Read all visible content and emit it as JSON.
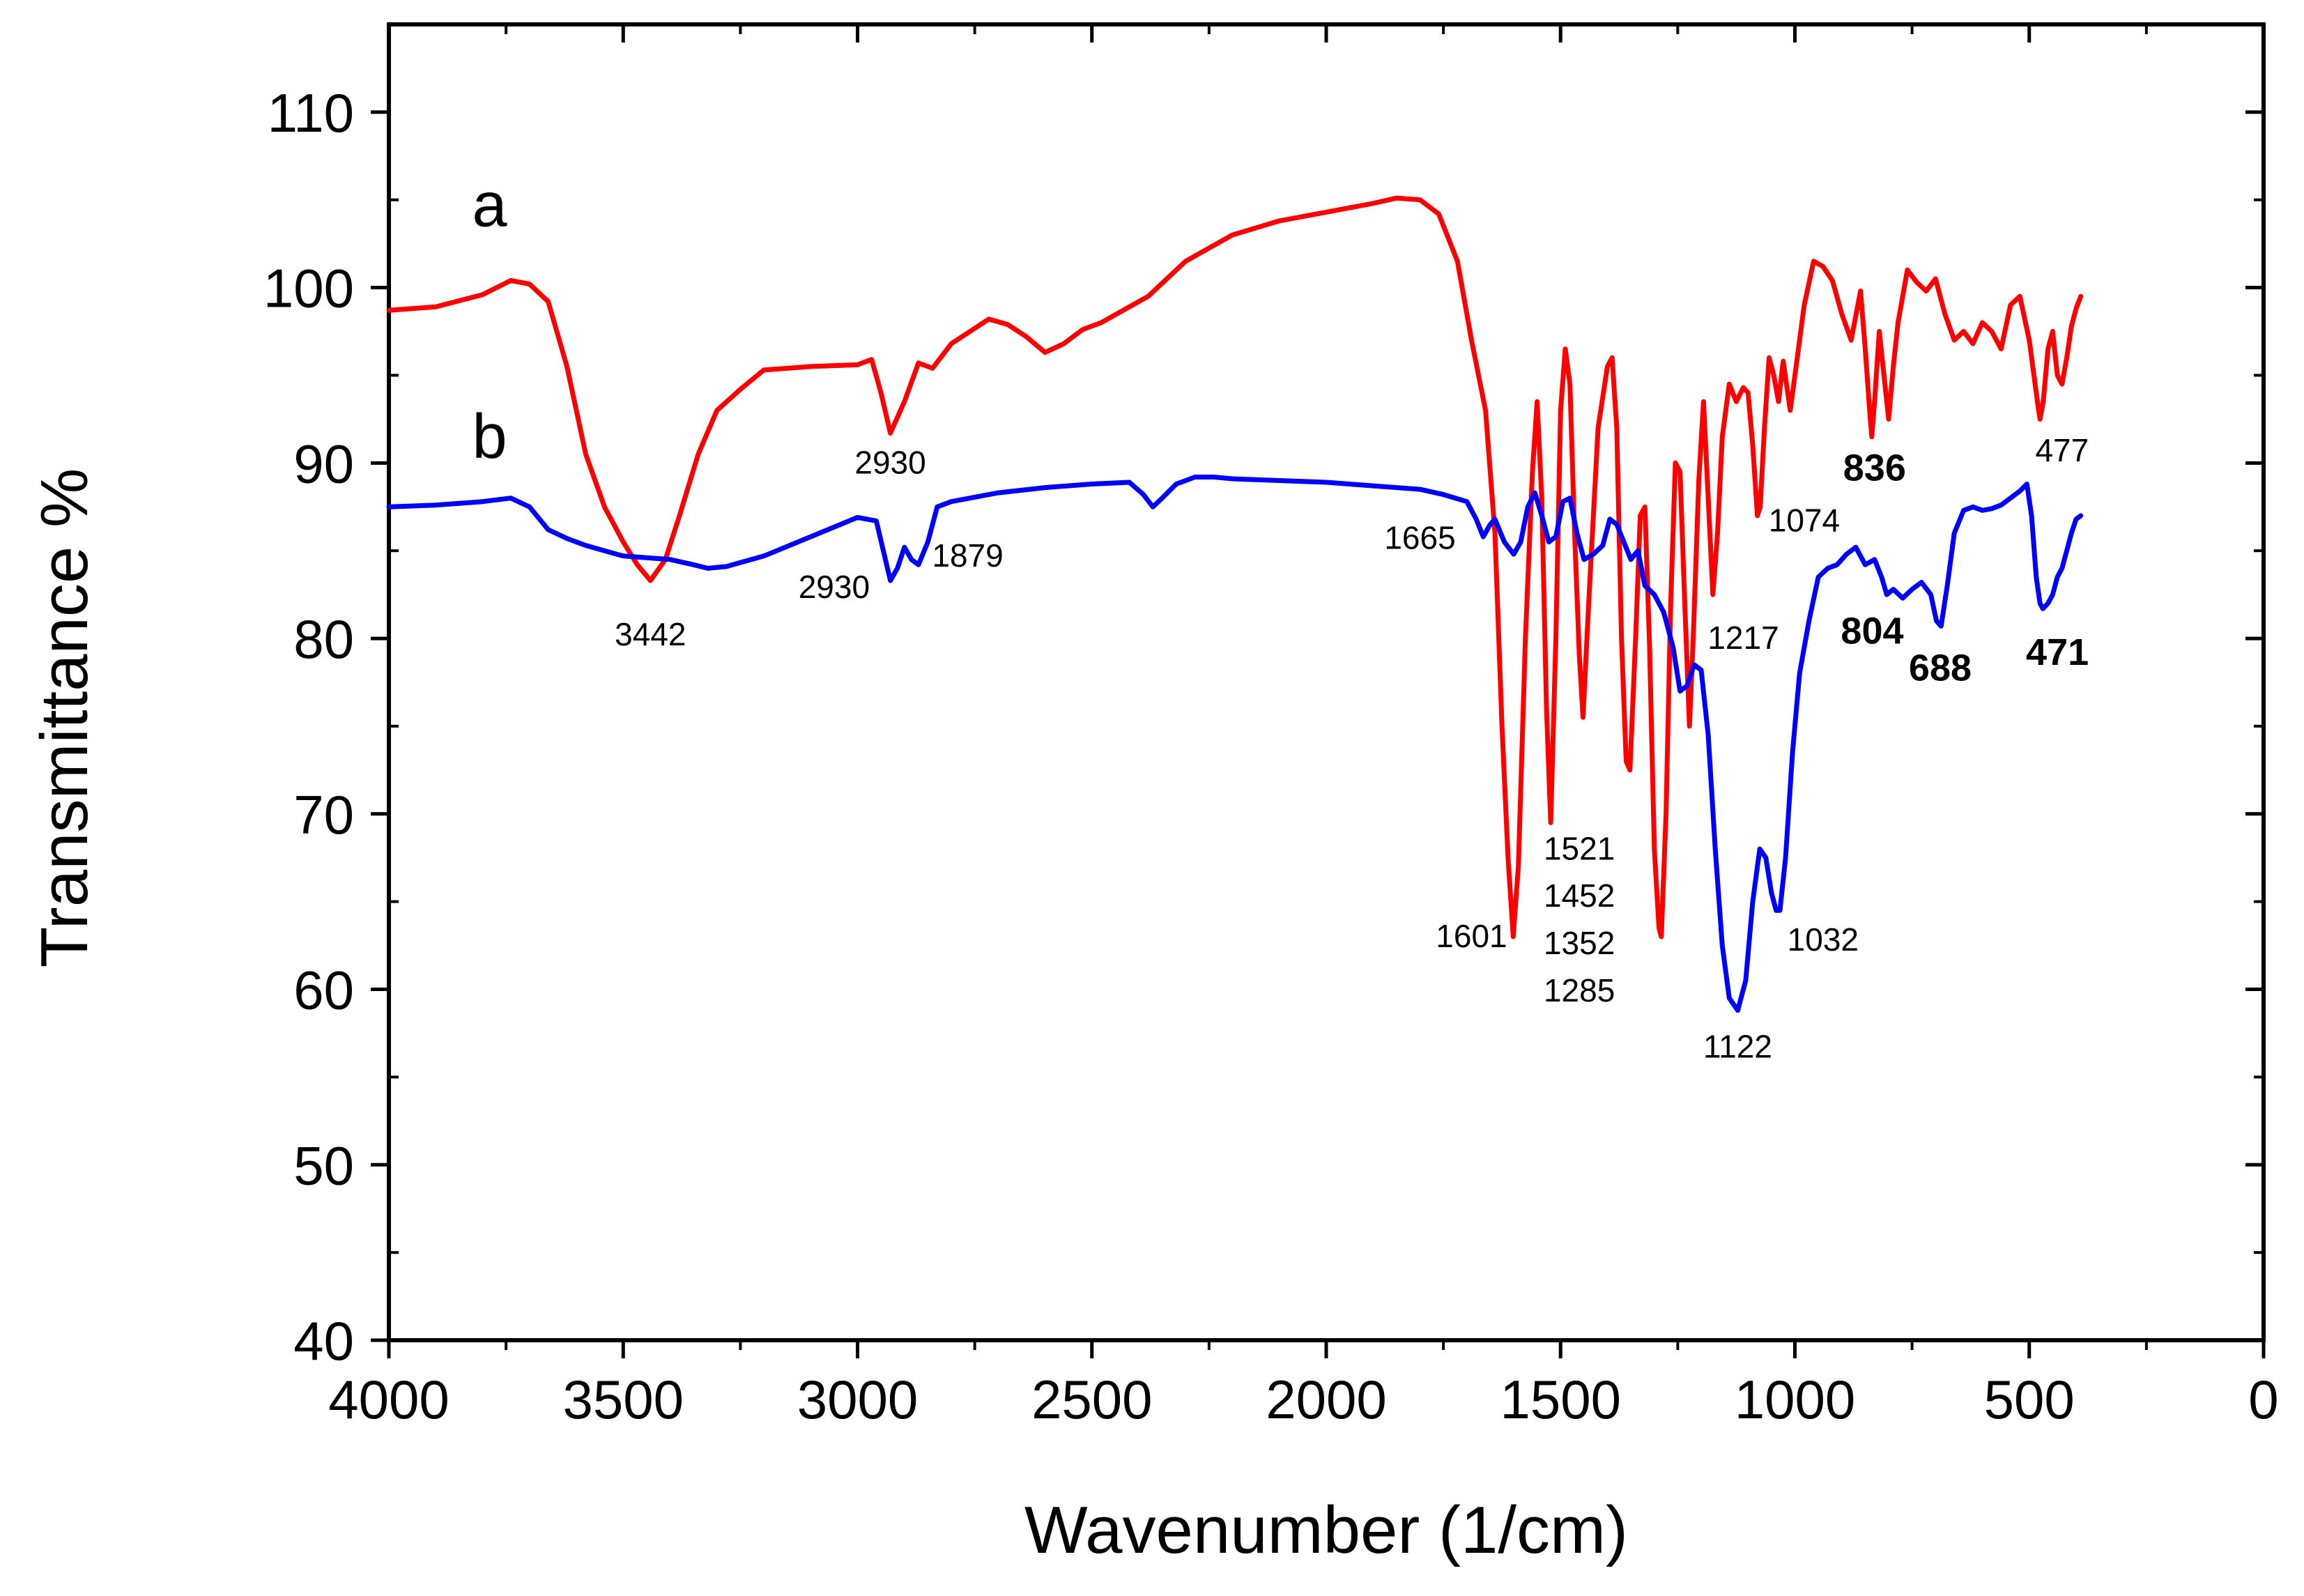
{
  "chart_data": {
    "type": "line",
    "title": "",
    "xlabel": "Wavenumber (1/cm)",
    "ylabel": "Transmittance %",
    "xlim": [
      4000,
      0
    ],
    "ylim": [
      40,
      115
    ],
    "xticks": [
      4000,
      3500,
      3000,
      2500,
      2000,
      1500,
      1000,
      500,
      0
    ],
    "yticks": [
      40,
      50,
      60,
      70,
      80,
      90,
      100,
      110
    ],
    "xtick_labels": [
      "4000",
      "3500",
      "3000",
      "2500",
      "2000",
      "1500",
      "1000",
      "500",
      "0"
    ],
    "ytick_labels": [
      "40",
      "50",
      "60",
      "70",
      "80",
      "90",
      "100",
      "110"
    ],
    "grid": false,
    "series": [
      {
        "name": "a",
        "color": "#ff0000",
        "x": [
          4000,
          3900,
          3800,
          3740,
          3700,
          3660,
          3620,
          3580,
          3540,
          3500,
          3470,
          3442,
          3410,
          3380,
          3340,
          3300,
          3250,
          3200,
          3100,
          3000,
          2970,
          2950,
          2930,
          2900,
          2870,
          2840,
          2800,
          2760,
          2720,
          2680,
          2640,
          2600,
          2560,
          2520,
          2480,
          2440,
          2380,
          2300,
          2200,
          2100,
          2000,
          1900,
          1850,
          1800,
          1760,
          1720,
          1690,
          1660,
          1640,
          1625,
          1612,
          1601,
          1590,
          1575,
          1560,
          1550,
          1540,
          1530,
          1521,
          1510,
          1500,
          1490,
          1480,
          1470,
          1460,
          1452,
          1440,
          1420,
          1400,
          1390,
          1380,
          1370,
          1360,
          1352,
          1340,
          1330,
          1320,
          1310,
          1300,
          1290,
          1285,
          1275,
          1265,
          1255,
          1245,
          1235,
          1225,
          1217,
          1205,
          1195,
          1185,
          1175,
          1165,
          1155,
          1140,
          1125,
          1110,
          1100,
          1090,
          1080,
          1074,
          1065,
          1055,
          1045,
          1035,
          1025,
          1010,
          995,
          980,
          960,
          940,
          920,
          900,
          880,
          860,
          850,
          840,
          836,
          830,
          820,
          810,
          800,
          790,
          780,
          760,
          740,
          720,
          700,
          680,
          660,
          640,
          620,
          600,
          580,
          560,
          540,
          520,
          500,
          490,
          480,
          477,
          470,
          460,
          450,
          440,
          430,
          420,
          410,
          400,
          390
        ],
        "y": [
          98.7,
          98.9,
          99.6,
          100.4,
          100.2,
          99.2,
          95.5,
          90.5,
          87.5,
          85.5,
          84.2,
          83.3,
          84.5,
          87.0,
          90.5,
          93.0,
          94.2,
          95.3,
          95.5,
          95.6,
          95.9,
          94.0,
          91.7,
          93.5,
          95.7,
          95.4,
          96.8,
          97.5,
          98.2,
          97.9,
          97.2,
          96.3,
          96.8,
          97.6,
          98.0,
          98.6,
          99.5,
          101.5,
          103.0,
          103.8,
          104.3,
          104.8,
          105.1,
          105.0,
          104.2,
          101.5,
          97.0,
          93.0,
          86.0,
          75.0,
          67.5,
          63.0,
          67.0,
          80.0,
          89.5,
          93.5,
          88.0,
          76.0,
          69.5,
          80.0,
          93.0,
          96.5,
          94.5,
          86.0,
          79.0,
          75.5,
          82.0,
          92.0,
          95.5,
          96.0,
          92.0,
          80.0,
          73.0,
          72.5,
          80.0,
          87.0,
          87.5,
          79.5,
          68.0,
          63.5,
          63.0,
          70.0,
          82.0,
          90.0,
          89.5,
          82.0,
          75.0,
          80.0,
          89.0,
          93.5,
          88.0,
          82.5,
          86.0,
          91.5,
          94.5,
          93.5,
          94.3,
          94.0,
          91.0,
          87.0,
          87.5,
          92.0,
          96.0,
          95.0,
          93.5,
          95.8,
          93.0,
          96.0,
          99.0,
          101.5,
          101.2,
          100.4,
          98.5,
          97.0,
          99.8,
          96.5,
          92.8,
          91.5,
          93.5,
          97.5,
          95.0,
          92.5,
          95.5,
          98.0,
          101.0,
          100.3,
          99.8,
          100.5,
          98.5,
          97.0,
          97.5,
          96.8,
          98.0,
          97.5,
          96.5,
          99.0,
          99.5,
          97.0,
          95.0,
          93.0,
          92.5,
          93.5,
          96.5,
          97.5,
          95.0,
          94.5,
          96.0,
          97.8,
          98.8,
          99.5
        ]
      },
      {
        "name": "b",
        "color": "#0000ff",
        "x": [
          4000,
          3900,
          3800,
          3740,
          3700,
          3660,
          3620,
          3580,
          3540,
          3500,
          3450,
          3400,
          3350,
          3320,
          3280,
          3200,
          3100,
          3000,
          2960,
          2945,
          2930,
          2915,
          2900,
          2885,
          2870,
          2850,
          2830,
          2800,
          2700,
          2600,
          2500,
          2420,
          2390,
          2370,
          2350,
          2320,
          2280,
          2240,
          2200,
          2100,
          2000,
          1900,
          1800,
          1750,
          1700,
          1680,
          1665,
          1650,
          1640,
          1620,
          1600,
          1585,
          1570,
          1555,
          1540,
          1525,
          1510,
          1495,
          1480,
          1465,
          1450,
          1430,
          1410,
          1395,
          1380,
          1365,
          1350,
          1335,
          1320,
          1300,
          1280,
          1260,
          1245,
          1230,
          1215,
          1200,
          1185,
          1170,
          1155,
          1140,
          1122,
          1105,
          1090,
          1075,
          1062,
          1050,
          1040,
          1032,
          1020,
          1005,
          990,
          970,
          950,
          930,
          910,
          890,
          870,
          850,
          830,
          815,
          804,
          790,
          770,
          750,
          730,
          710,
          698,
          688,
          675,
          660,
          640,
          620,
          600,
          580,
          560,
          540,
          520,
          505,
          495,
          485,
          477,
          471,
          460,
          450,
          440,
          430,
          420,
          410,
          400,
          390
        ],
        "y": [
          87.5,
          87.6,
          87.8,
          88.0,
          87.5,
          86.2,
          85.7,
          85.3,
          85.0,
          84.7,
          84.6,
          84.5,
          84.2,
          84.0,
          84.1,
          84.7,
          85.8,
          86.9,
          86.7,
          85.0,
          83.3,
          84.0,
          85.2,
          84.5,
          84.2,
          85.5,
          87.5,
          87.8,
          88.3,
          88.6,
          88.8,
          88.9,
          88.2,
          87.5,
          88.0,
          88.8,
          89.2,
          89.2,
          89.1,
          89.0,
          88.9,
          88.7,
          88.5,
          88.2,
          87.8,
          86.8,
          85.8,
          86.5,
          86.8,
          85.5,
          84.8,
          85.5,
          87.5,
          88.3,
          87.0,
          85.5,
          85.8,
          87.8,
          88.0,
          86.0,
          84.5,
          84.8,
          85.3,
          86.8,
          86.5,
          85.5,
          84.5,
          85.0,
          83.0,
          82.5,
          81.5,
          79.5,
          77.0,
          77.3,
          78.5,
          78.2,
          74.5,
          68.0,
          62.5,
          59.5,
          58.8,
          60.5,
          65.0,
          68.0,
          67.5,
          65.5,
          64.5,
          64.5,
          67.5,
          73.5,
          78.0,
          81.0,
          83.5,
          84.0,
          84.2,
          84.8,
          85.2,
          84.2,
          84.5,
          83.5,
          82.5,
          82.8,
          82.3,
          82.8,
          83.2,
          82.5,
          81.0,
          80.7,
          83.0,
          86.0,
          87.3,
          87.5,
          87.3,
          87.4,
          87.6,
          88.0,
          88.4,
          88.8,
          87.0,
          83.5,
          82.0,
          81.7,
          82.0,
          82.5,
          83.5,
          84.0,
          85.0,
          86.0,
          86.8,
          87.0
        ]
      }
    ],
    "series_labels": [
      {
        "text": "a",
        "x": 3785,
        "y": 103.5
      },
      {
        "text": "b",
        "x": 3785,
        "y": 90.3
      }
    ],
    "annotations": [
      {
        "text": "2930",
        "x": 2930,
        "y": 89.4,
        "color": "#000000",
        "weight": "normal"
      },
      {
        "text": "3442",
        "x": 3442,
        "y": 79.6,
        "color": "#000000",
        "weight": "normal"
      },
      {
        "text": "2930",
        "x": 3050,
        "y": 82.3,
        "color": "#000000",
        "weight": "normal"
      },
      {
        "text": "1879",
        "x": 2765,
        "y": 84.1,
        "color": "#000000",
        "weight": "normal"
      },
      {
        "text": "1665",
        "x": 1800,
        "y": 85.1,
        "color": "#000000",
        "weight": "normal"
      },
      {
        "text": "1601",
        "x": 1690,
        "y": 62.4,
        "color": "#000000",
        "weight": "normal"
      },
      {
        "text": "1521",
        "x": 1460,
        "y": 67.4,
        "color": "#000000",
        "weight": "normal"
      },
      {
        "text": "1452",
        "x": 1460,
        "y": 64.7,
        "color": "#000000",
        "weight": "normal"
      },
      {
        "text": "1352",
        "x": 1460,
        "y": 62.0,
        "color": "#000000",
        "weight": "normal"
      },
      {
        "text": "1285",
        "x": 1460,
        "y": 59.3,
        "color": "#000000",
        "weight": "normal"
      },
      {
        "text": "1122",
        "x": 1122,
        "y": 56.1,
        "color": "#000000",
        "weight": "normal"
      },
      {
        "text": "1032",
        "x": 940,
        "y": 62.2,
        "color": "#000000",
        "weight": "normal"
      },
      {
        "text": "1217",
        "x": 1110,
        "y": 79.4,
        "color": "#000000",
        "weight": "normal"
      },
      {
        "text": "1074",
        "x": 980,
        "y": 86.1,
        "color": "#000000",
        "weight": "normal"
      },
      {
        "text": "804",
        "x": 835,
        "y": 79.7,
        "color": "#000000",
        "weight": "bold"
      },
      {
        "text": "836",
        "x": 830,
        "y": 89.0,
        "color": "#000000",
        "weight": "bold"
      },
      {
        "text": "688",
        "x": 690,
        "y": 77.6,
        "color": "#000000",
        "weight": "bold"
      },
      {
        "text": "477",
        "x": 430,
        "y": 90.1,
        "color": "#000000",
        "weight": "normal"
      },
      {
        "text": "471",
        "x": 440,
        "y": 78.5,
        "color": "#000000",
        "weight": "bold"
      }
    ],
    "legend": "none"
  }
}
